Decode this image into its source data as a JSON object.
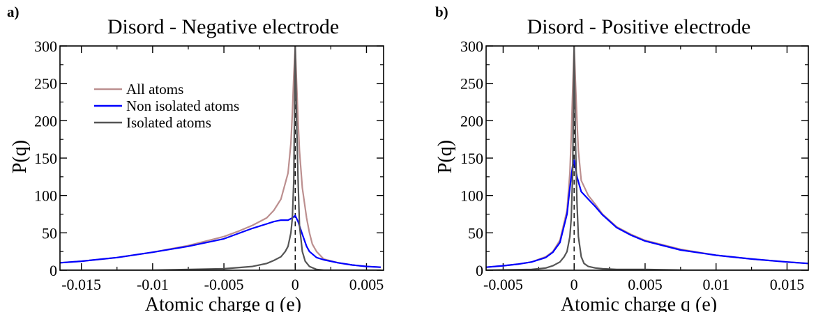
{
  "chart_data": [
    {
      "panel_label": "a)",
      "type": "line",
      "title": "Disord - Negative electrode",
      "xlabel": "Atomic charge q (e)",
      "ylabel": "P(q)",
      "xlim": [
        -0.0165,
        0.0062
      ],
      "ylim": [
        0,
        300
      ],
      "xticks": [
        -0.015,
        -0.01,
        -0.005,
        0,
        0.005
      ],
      "xtick_labels": [
        "-0.015",
        "-0.01",
        "-0.005",
        "0",
        "0.005"
      ],
      "yticks": [
        0,
        50,
        100,
        150,
        200,
        250,
        300
      ],
      "ytick_labels": [
        "0",
        "50",
        "100",
        "150",
        "200",
        "250",
        "300"
      ],
      "grid": false,
      "legend_position": "upper-left",
      "reference_line_x": 0,
      "series": [
        {
          "name": "All atoms",
          "color": "#bc8f8f",
          "x": [
            -0.0165,
            -0.015,
            -0.0125,
            -0.01,
            -0.0075,
            -0.005,
            -0.004,
            -0.003,
            -0.002,
            -0.0015,
            -0.001,
            -0.0005,
            -0.0003,
            -0.0002,
            -0.0001,
            0,
            0.0001,
            0.0002,
            0.0003,
            0.0005,
            0.0008,
            0.001,
            0.0012,
            0.0015,
            0.002,
            0.003,
            0.004,
            0.005,
            0.006
          ],
          "y": [
            10,
            12,
            17,
            24,
            33,
            45,
            52,
            60,
            70,
            80,
            95,
            130,
            170,
            210,
            260,
            300,
            250,
            200,
            160,
            110,
            70,
            50,
            35,
            25,
            15,
            10,
            7,
            5,
            4
          ]
        },
        {
          "name": "Non isolated atoms",
          "color": "#0000ff",
          "x": [
            -0.0165,
            -0.015,
            -0.0125,
            -0.01,
            -0.0075,
            -0.005,
            -0.004,
            -0.003,
            -0.002,
            -0.0015,
            -0.001,
            -0.0005,
            -0.0002,
            0,
            0.0002,
            0.0005,
            0.0008,
            0.001,
            0.0015,
            0.002,
            0.003,
            0.004,
            0.005,
            0.006
          ],
          "y": [
            10,
            12,
            17,
            24,
            32,
            42,
            49,
            56,
            62,
            65,
            67,
            67,
            70,
            73,
            65,
            48,
            32,
            25,
            17,
            14,
            10,
            7,
            5,
            4
          ]
        },
        {
          "name": "Isolated atoms",
          "color": "#555555",
          "x": [
            -0.0165,
            -0.01,
            -0.005,
            -0.003,
            -0.002,
            -0.0015,
            -0.001,
            -0.0007,
            -0.0005,
            -0.0003,
            -0.0002,
            -0.0001,
            0,
            0.0001,
            0.0002,
            0.0003,
            0.0005,
            0.0007,
            0.001,
            0.0015,
            0.002,
            0.003,
            0.006
          ],
          "y": [
            0,
            0,
            2,
            5,
            9,
            13,
            18,
            25,
            32,
            50,
            70,
            120,
            300,
            200,
            120,
            60,
            25,
            12,
            5,
            1,
            0,
            0,
            0
          ]
        }
      ]
    },
    {
      "panel_label": "b)",
      "type": "line",
      "title": "Disord - Positive electrode",
      "xlabel": "Atomic charge q (e)",
      "ylabel": "P(q)",
      "xlim": [
        -0.0062,
        0.0165
      ],
      "ylim": [
        0,
        300
      ],
      "xticks": [
        -0.005,
        0,
        0.005,
        0.01,
        0.015
      ],
      "xtick_labels": [
        "-0.005",
        "0",
        "0.005",
        "0.01",
        "0.015"
      ],
      "yticks": [
        0,
        50,
        100,
        150,
        200,
        250,
        300
      ],
      "ytick_labels": [
        "0",
        "50",
        "100",
        "150",
        "200",
        "250",
        "300"
      ],
      "grid": false,
      "legend_position": "none",
      "reference_line_x": 0,
      "series": [
        {
          "name": "All atoms",
          "color": "#bc8f8f",
          "x": [
            -0.0062,
            -0.005,
            -0.004,
            -0.003,
            -0.002,
            -0.0015,
            -0.001,
            -0.0005,
            -0.0003,
            -0.0002,
            -0.0001,
            0,
            0.0001,
            0.0002,
            0.0003,
            0.0005,
            0.001,
            0.0015,
            0.002,
            0.003,
            0.004,
            0.005,
            0.0075,
            0.01,
            0.0125,
            0.015,
            0.0165
          ],
          "y": [
            4,
            6,
            8,
            11,
            18,
            25,
            40,
            80,
            130,
            180,
            240,
            300,
            250,
            200,
            160,
            120,
            100,
            88,
            75,
            58,
            48,
            40,
            28,
            20,
            15,
            11,
            9
          ]
        },
        {
          "name": "Non isolated atoms",
          "color": "#0000ff",
          "x": [
            -0.0062,
            -0.005,
            -0.004,
            -0.003,
            -0.002,
            -0.0015,
            -0.001,
            -0.0005,
            -0.0003,
            -0.0001,
            0,
            0.0002,
            0.0005,
            0.001,
            0.0015,
            0.002,
            0.003,
            0.004,
            0.005,
            0.0075,
            0.01,
            0.0125,
            0.015,
            0.0165
          ],
          "y": [
            4,
            6,
            8,
            11,
            17,
            24,
            37,
            75,
            110,
            140,
            147,
            125,
            105,
            95,
            85,
            74,
            57,
            47,
            39,
            27,
            20,
            15,
            11,
            9
          ]
        },
        {
          "name": "Isolated atoms",
          "color": "#555555",
          "x": [
            -0.0062,
            -0.003,
            -0.002,
            -0.0015,
            -0.001,
            -0.0007,
            -0.0005,
            -0.0003,
            -0.0002,
            -0.0001,
            0,
            0.0001,
            0.0002,
            0.0003,
            0.0005,
            0.0007,
            0.001,
            0.0015,
            0.002,
            0.003,
            0.005,
            0.008,
            0.0165
          ],
          "y": [
            0,
            1,
            3,
            6,
            11,
            18,
            25,
            45,
            70,
            130,
            300,
            170,
            90,
            45,
            18,
            9,
            5,
            3,
            2,
            1,
            1,
            0,
            0
          ]
        }
      ]
    }
  ]
}
